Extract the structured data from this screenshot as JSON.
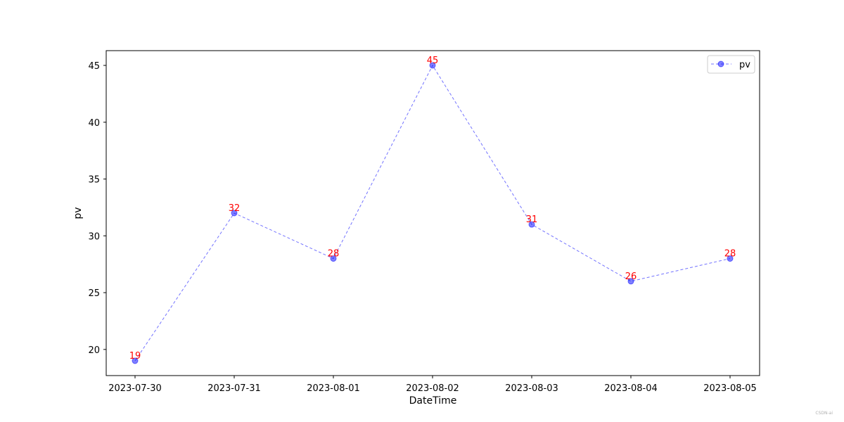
{
  "chart_data": {
    "type": "line",
    "x": [
      "2023-07-30",
      "2023-07-31",
      "2023-08-01",
      "2023-08-02",
      "2023-08-03",
      "2023-08-04",
      "2023-08-05"
    ],
    "series": [
      {
        "name": "pv",
        "values": [
          19,
          32,
          28,
          45,
          31,
          26,
          28
        ],
        "color": "#0000ff",
        "line_style": "dashed",
        "marker": "circle"
      }
    ],
    "xlabel": "DateTime",
    "ylabel": "pv",
    "ylim": [
      17.7,
      46.3
    ],
    "yticks": [
      20,
      25,
      30,
      35,
      40,
      45
    ],
    "data_label_color": "#ff0000",
    "legend_position": "top-right",
    "grid": false
  },
  "watermark": "CSDN-ai"
}
